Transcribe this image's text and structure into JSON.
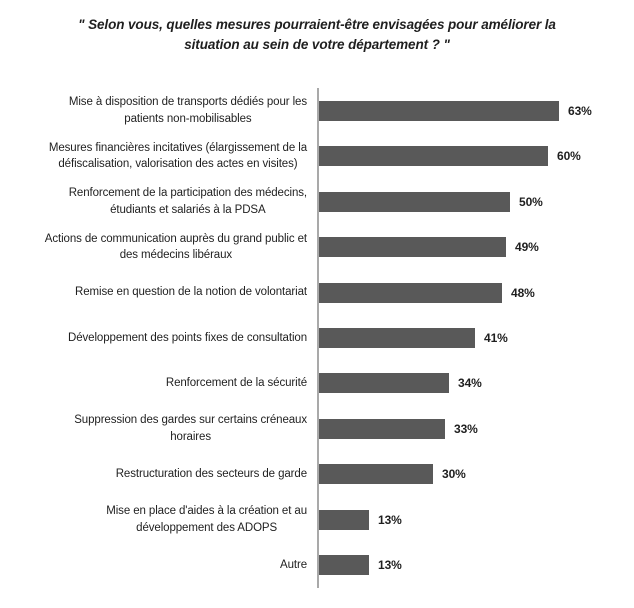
{
  "title": {
    "full": "\" Selon vous, quelles mesures pourraient-être envisagées pour améliorer la situation au sein de votre département ? \"",
    "lines": [
      "\" Selon vous, quelles mesures pourraient-être envisagées pour améliorer la",
      "situation au sein de votre département ? \""
    ]
  },
  "chart_data": {
    "type": "bar",
    "orientation": "horizontal",
    "title": "\" Selon vous, quelles mesures pourraient-être envisagées pour améliorer la situation au sein de votre département ? \"",
    "unit": "%",
    "xlim": [
      0,
      66
    ],
    "grid": false,
    "legend": false,
    "bar_color": "#595959",
    "axis_color": "#a9a9a9",
    "value_label_position": "right-of-bar",
    "categories": [
      "Mise à disposition de transports dédiés pour les patients non-mobilisables",
      "Mesures financières incitatives (élargissement de la défiscalisation, valorisation des actes en visites)",
      "Renforcement de la participation des médecins, étudiants et salariés à la PDSA",
      "Actions de communication auprès du grand public et des médecins libéraux",
      "Remise en question de la notion de volontariat",
      "Développement des points fixes de consultation",
      "Renforcement de la sécurité",
      "Suppression des gardes sur certains créneaux horaires",
      "Restructuration des secteurs de garde",
      "Mise en place d'aides à la création et au développement des ADOPS",
      "Autre"
    ],
    "category_lines": [
      [
        "Mise à disposition de transports dédiés pour les",
        "patients non-mobilisables"
      ],
      [
        "Mesures financières incitatives (élargissement de la",
        "défiscalisation, valorisation des actes en visites)"
      ],
      [
        "Renforcement de la participation des médecins,",
        "étudiants et salariés à la PDSA"
      ],
      [
        "Actions de communication auprès du grand public et",
        "des médecins libéraux"
      ],
      [
        "Remise en question de la notion de volontariat"
      ],
      [
        "Développement des points fixes de consultation"
      ],
      [
        "Renforcement de la sécurité"
      ],
      [
        "Suppression des gardes sur certains créneaux",
        "horaires"
      ],
      [
        "Restructuration des secteurs de garde"
      ],
      [
        "Mise en place d'aides à la création et au",
        "développement des ADOPS"
      ],
      [
        "Autre"
      ]
    ],
    "values": [
      63,
      60,
      50,
      49,
      48,
      41,
      34,
      33,
      30,
      13,
      13
    ],
    "value_labels": [
      "63%",
      "60%",
      "50%",
      "49%",
      "48%",
      "41%",
      "34%",
      "33%",
      "30%",
      "13%",
      "13%"
    ]
  }
}
